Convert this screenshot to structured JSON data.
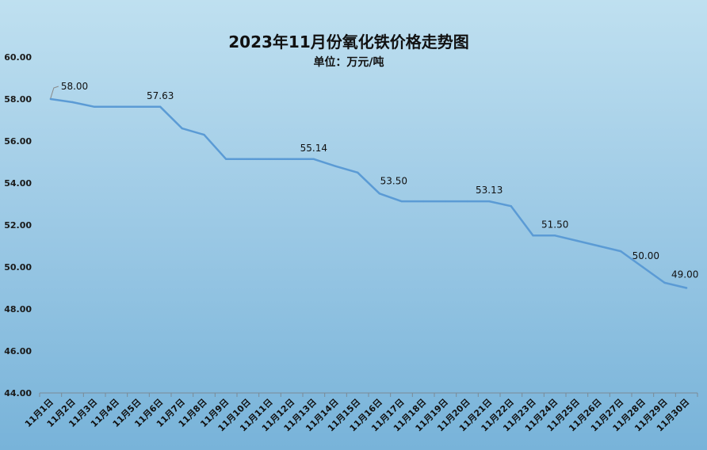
{
  "chart_data": {
    "type": "line",
    "title": "2023年11月份氧化铁价格走势图",
    "subtitle": "单位：万元/吨",
    "ylim": [
      44,
      60
    ],
    "y_ticks": [
      "60.00",
      "58.00",
      "56.00",
      "54.00",
      "52.00",
      "50.00",
      "48.00",
      "46.00",
      "44.00"
    ],
    "categories": [
      "11月1日",
      "11月2日",
      "11月3日",
      "11月4日",
      "11月5日",
      "11月6日",
      "11月7日",
      "11月8日",
      "11月9日",
      "11月10日",
      "11月11日",
      "11月12日",
      "11月13日",
      "11月14日",
      "11月15日",
      "11月16日",
      "11月17日",
      "11月18日",
      "11月19日",
      "11月20日",
      "11月21日",
      "11月22日",
      "11月23日",
      "11月24日",
      "11月25日",
      "11月26日",
      "11月27日",
      "11月28日",
      "11月29日",
      "11月30日"
    ],
    "values": [
      58.0,
      57.85,
      57.63,
      57.63,
      57.63,
      57.63,
      56.6,
      56.3,
      55.14,
      55.14,
      55.14,
      55.14,
      55.14,
      54.8,
      54.5,
      53.5,
      53.13,
      53.13,
      53.13,
      53.13,
      53.13,
      52.9,
      51.5,
      51.5,
      51.25,
      51.0,
      50.75,
      50.0,
      49.25,
      49.0
    ],
    "data_labels": [
      {
        "index": 0,
        "text": "58.00"
      },
      {
        "index": 5,
        "text": "57.63"
      },
      {
        "index": 12,
        "text": "55.14"
      },
      {
        "index": 15,
        "text": "53.50"
      },
      {
        "index": 20,
        "text": "53.13"
      },
      {
        "index": 23,
        "text": "51.50"
      },
      {
        "index": 27,
        "text": "50.00"
      },
      {
        "index": 29,
        "text": "49.00"
      }
    ],
    "line_color": "#5b9bd5",
    "grid": false,
    "legend": "none"
  }
}
